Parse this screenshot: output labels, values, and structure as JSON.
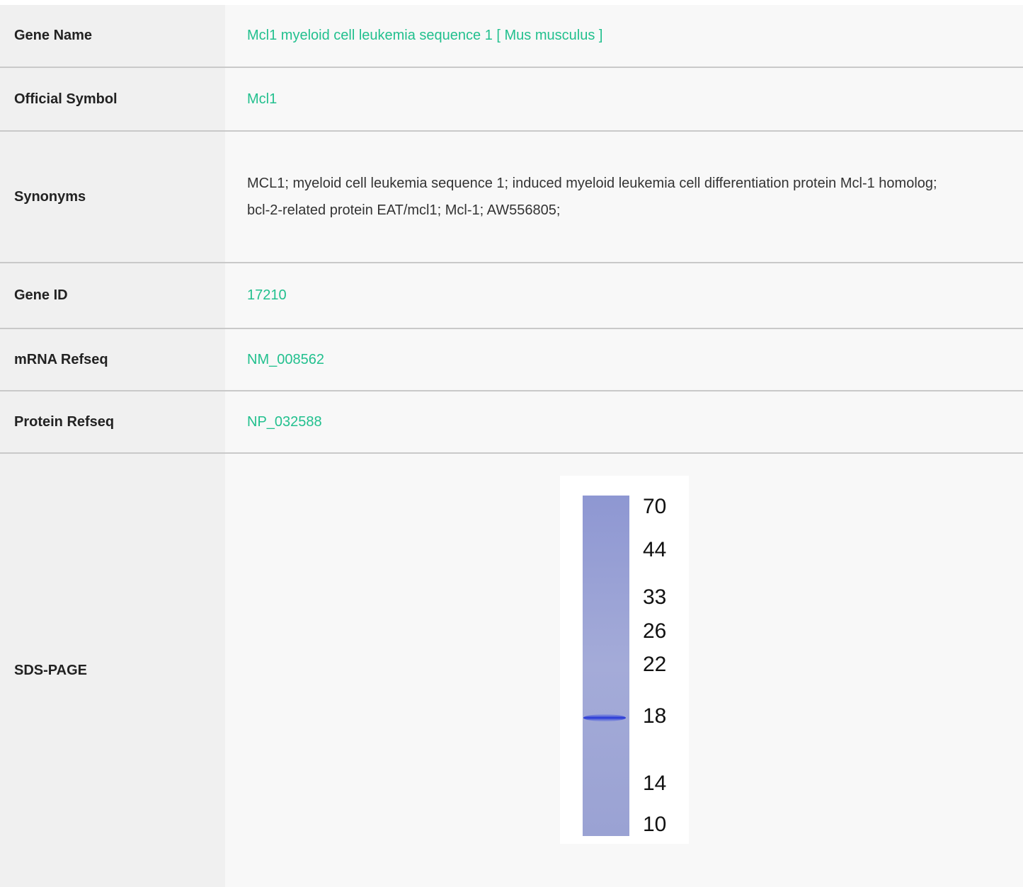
{
  "rows": [
    {
      "label": "Gene Name",
      "value": "Mcl1 myeloid cell leukemia sequence 1 [ Mus musculus ]"
    },
    {
      "label": "Official Symbol",
      "value": "Mcl1"
    },
    {
      "label": "Synonyms",
      "value": "MCL1; myeloid cell leukemia sequence 1; induced myeloid leukemia cell differentiation protein Mcl-1 homolog; bcl-2-related protein EAT/mcl1; Mcl-1; AW556805;"
    },
    {
      "label": "Gene ID",
      "value": "17210"
    },
    {
      "label": "mRNA Refseq",
      "value": "NM_008562"
    },
    {
      "label": "Protein Refseq",
      "value": "NP_032588"
    }
  ],
  "sds_page": {
    "label": "SDS-PAGE",
    "markers": [
      70,
      44,
      33,
      26,
      22,
      18,
      14,
      10
    ]
  }
}
